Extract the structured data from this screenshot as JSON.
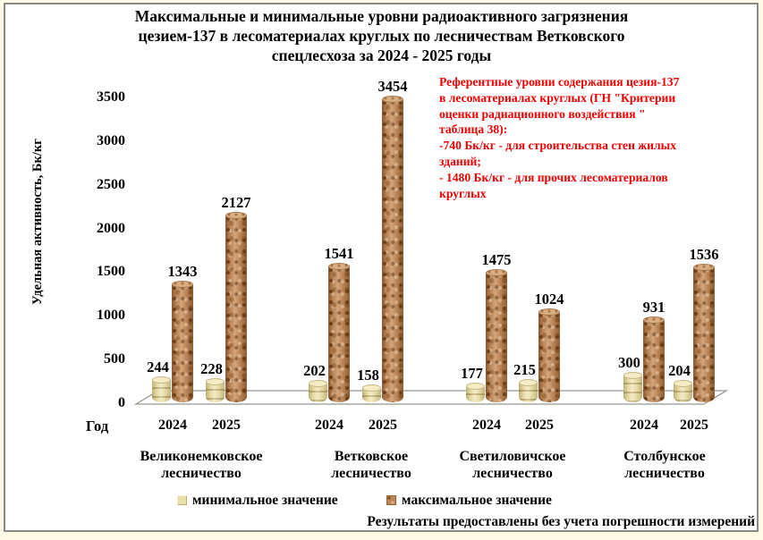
{
  "title": "Максимальные и минимальные уровни радиоактивного загрязнения\nцезием-137 в  лесоматериалах круглых по лесничествам Ветковского\nспецлесхоза  за 2024 -  2025 годы",
  "annotation": "Референтные уровни содержания цезия-137\nв лесоматериалах круглых (ГН \"Критерии\nоценки радиационного воздействия \"\nтаблица 38):\n-740 Бк/кг - для строительства стен жилых\nзданий;\n- 1480 Бк/кг - для прочих лесоматериалов\nкруглых",
  "footer_note": "Результаты предоставлены без учета погрешности измерений",
  "colors": {
    "min_bar": "#EDE2AE",
    "max_bar": "#C28B5C",
    "annotation_red": "#EE0000",
    "frame_border": "#8A8A84",
    "page_background": "#FDFBE7"
  },
  "chart_data": {
    "type": "bar",
    "style": "3d-cylinder",
    "title": "Максимальные и минимальные уровни радиоактивного загрязнения цезием-137 в лесоматериалах круглых по лесничествам Ветковского спецлесхоза за 2024 - 2025 годы",
    "xlabel": "Год",
    "ylabel": "Удельная активность, Бк/кг",
    "ylim": [
      0,
      3500
    ],
    "yticks": [
      0,
      500,
      1000,
      1500,
      2000,
      2500,
      3000,
      3500
    ],
    "grid": false,
    "legend_position": "bottom",
    "series": [
      {
        "name": "минимальное значение",
        "color": "#EADFA8"
      },
      {
        "name": "максимальное значение",
        "color": "#BE8756"
      }
    ],
    "groups": [
      {
        "name": "Великонемковское\nлесничество",
        "years": [
          {
            "year": "2024",
            "min": 244,
            "max": 1343
          },
          {
            "year": "2025",
            "min": 228,
            "max": 2127
          }
        ]
      },
      {
        "name": "Ветковское\nлесничество",
        "years": [
          {
            "year": "2024",
            "min": 202,
            "max": 1541
          },
          {
            "year": "2025",
            "min": 158,
            "max": 3454
          }
        ]
      },
      {
        "name": "Светиловичское\nлесничество",
        "years": [
          {
            "year": "2024",
            "min": 177,
            "max": 1475
          },
          {
            "year": "2025",
            "min": 215,
            "max": 1024
          }
        ]
      },
      {
        "name": "Столбунское\nлесничество",
        "years": [
          {
            "year": "2024",
            "min": 300,
            "max": 931
          },
          {
            "year": "2025",
            "min": 204,
            "max": 1536
          }
        ]
      }
    ]
  }
}
